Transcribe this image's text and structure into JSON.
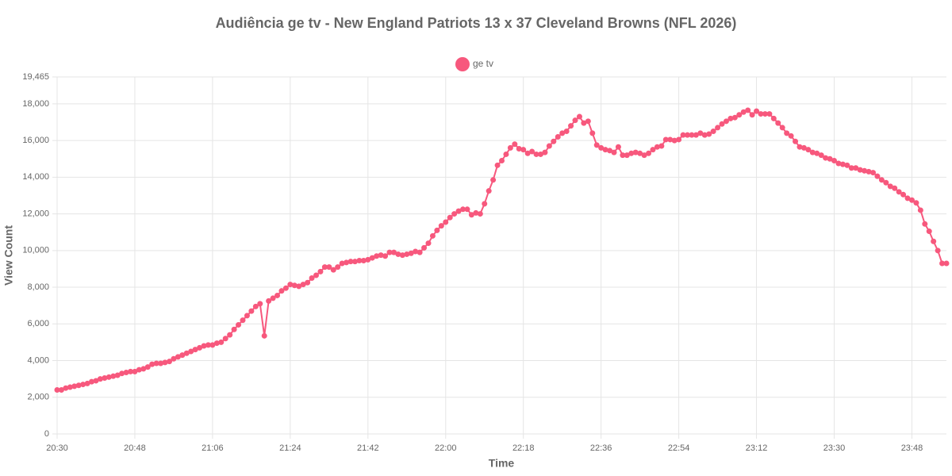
{
  "chart_data": {
    "type": "line",
    "title": "Audiência ge tv - New England Patriots 13 x 37 Cleveland Browns (NFL 2026)",
    "x_label": "Time",
    "y_label": "View Count",
    "x": [
      "20:30",
      "20:31",
      "20:32",
      "20:33",
      "20:34",
      "20:35",
      "20:36",
      "20:37",
      "20:38",
      "20:39",
      "20:40",
      "20:41",
      "20:42",
      "20:43",
      "20:44",
      "20:45",
      "20:46",
      "20:47",
      "20:48",
      "20:49",
      "20:50",
      "20:51",
      "20:52",
      "20:53",
      "20:54",
      "20:55",
      "20:56",
      "20:57",
      "20:58",
      "20:59",
      "21:00",
      "21:01",
      "21:02",
      "21:03",
      "21:04",
      "21:05",
      "21:06",
      "21:07",
      "21:08",
      "21:09",
      "21:10",
      "21:11",
      "21:12",
      "21:13",
      "21:14",
      "21:15",
      "21:16",
      "21:17",
      "21:18",
      "21:19",
      "21:20",
      "21:21",
      "21:22",
      "21:23",
      "21:24",
      "21:25",
      "21:26",
      "21:27",
      "21:28",
      "21:29",
      "21:30",
      "21:31",
      "21:32",
      "21:33",
      "21:34",
      "21:35",
      "21:36",
      "21:37",
      "21:38",
      "21:39",
      "21:40",
      "21:41",
      "21:42",
      "21:43",
      "21:44",
      "21:45",
      "21:46",
      "21:47",
      "21:48",
      "21:49",
      "21:50",
      "21:51",
      "21:52",
      "21:53",
      "21:54",
      "21:55",
      "21:56",
      "21:57",
      "21:58",
      "21:59",
      "22:00",
      "22:01",
      "22:02",
      "22:03",
      "22:04",
      "22:05",
      "22:06",
      "22:07",
      "22:08",
      "22:09",
      "22:10",
      "22:11",
      "22:12",
      "22:13",
      "22:14",
      "22:15",
      "22:16",
      "22:17",
      "22:18",
      "22:19",
      "22:20",
      "22:21",
      "22:22",
      "22:23",
      "22:24",
      "22:25",
      "22:26",
      "22:27",
      "22:28",
      "22:29",
      "22:30",
      "22:31",
      "22:32",
      "22:33",
      "22:34",
      "22:35",
      "22:36",
      "22:37",
      "22:38",
      "22:39",
      "22:40",
      "22:41",
      "22:42",
      "22:43",
      "22:44",
      "22:45",
      "22:46",
      "22:47",
      "22:48",
      "22:49",
      "22:50",
      "22:51",
      "22:52",
      "22:53",
      "22:54",
      "22:55",
      "22:56",
      "22:57",
      "22:58",
      "22:59",
      "23:00",
      "23:01",
      "23:02",
      "23:03",
      "23:04",
      "23:05",
      "23:06",
      "23:07",
      "23:08",
      "23:09",
      "23:10",
      "23:11",
      "23:12",
      "23:13",
      "23:14",
      "23:15",
      "23:16",
      "23:17",
      "23:18",
      "23:19",
      "23:20",
      "23:21",
      "23:22",
      "23:23",
      "23:24",
      "23:25",
      "23:26",
      "23:27",
      "23:28",
      "23:29",
      "23:30",
      "23:31",
      "23:32",
      "23:33",
      "23:34",
      "23:35",
      "23:36",
      "23:37",
      "23:38",
      "23:39",
      "23:40",
      "23:41",
      "23:42",
      "23:43",
      "23:44",
      "23:45",
      "23:46",
      "23:47",
      "23:48",
      "23:49",
      "23:50",
      "23:51",
      "23:52",
      "23:53",
      "23:54",
      "23:55",
      "23:56"
    ],
    "series": [
      {
        "name": "ge tv",
        "color": "#f7587d",
        "values": [
          2400,
          2400,
          2500,
          2550,
          2600,
          2650,
          2700,
          2750,
          2850,
          2900,
          3000,
          3050,
          3100,
          3150,
          3200,
          3300,
          3350,
          3400,
          3400,
          3500,
          3550,
          3650,
          3800,
          3850,
          3850,
          3900,
          3950,
          4100,
          4200,
          4300,
          4400,
          4500,
          4600,
          4700,
          4800,
          4850,
          4850,
          4950,
          5000,
          5200,
          5400,
          5700,
          5950,
          6200,
          6450,
          6700,
          6950,
          7100,
          5350,
          7250,
          7400,
          7550,
          7800,
          7950,
          8150,
          8100,
          8050,
          8150,
          8250,
          8500,
          8650,
          8850,
          9100,
          9100,
          8950,
          9100,
          9300,
          9350,
          9400,
          9400,
          9450,
          9450,
          9500,
          9600,
          9700,
          9750,
          9700,
          9900,
          9900,
          9800,
          9750,
          9800,
          9850,
          9950,
          9900,
          10150,
          10400,
          10800,
          11100,
          11350,
          11550,
          11800,
          12000,
          12150,
          12250,
          12250,
          11950,
          12050,
          12000,
          12550,
          13250,
          13850,
          14650,
          14900,
          15250,
          15600,
          15800,
          15550,
          15500,
          15300,
          15400,
          15250,
          15250,
          15350,
          15700,
          15950,
          16200,
          16400,
          16500,
          16800,
          17100,
          17300,
          16950,
          17050,
          16400,
          15750,
          15600,
          15500,
          15450,
          15350,
          15650,
          15200,
          15200,
          15300,
          15350,
          15300,
          15200,
          15300,
          15500,
          15650,
          15700,
          16050,
          16050,
          16000,
          16050,
          16300,
          16300,
          16300,
          16300,
          16400,
          16300,
          16350,
          16500,
          16700,
          16900,
          17050,
          17200,
          17250,
          17400,
          17550,
          17650,
          17400,
          17600,
          17450,
          17450,
          17450,
          17200,
          16950,
          16700,
          16400,
          16250,
          15950,
          15650,
          15600,
          15500,
          15350,
          15300,
          15200,
          15050,
          15000,
          14900,
          14750,
          14700,
          14650,
          14500,
          14500,
          14400,
          14350,
          14300,
          14250,
          14050,
          13850,
          13700,
          13500,
          13400,
          13200,
          13050,
          12850,
          12750,
          12600,
          12200,
          11450,
          11050,
          10500,
          10000,
          9300,
          9300
        ]
      }
    ],
    "xticks": [
      "20:30",
      "20:48",
      "21:06",
      "21:24",
      "21:42",
      "22:00",
      "22:18",
      "22:36",
      "22:54",
      "23:12",
      "23:30",
      "23:48"
    ],
    "ylim": [
      0,
      19465
    ],
    "yticks": [
      0,
      {
        "value": 2000,
        "label": "2,000"
      },
      {
        "value": 4000,
        "label": "4,000"
      },
      {
        "value": 6000,
        "label": "6,000"
      },
      {
        "value": 8000,
        "label": "8,000"
      },
      {
        "value": 10000,
        "label": "10,000"
      },
      {
        "value": 12000,
        "label": "12,000"
      },
      {
        "value": 14000,
        "label": "14,000"
      },
      {
        "value": 16000,
        "label": "16,000"
      },
      {
        "value": 18000,
        "label": "18,000"
      },
      {
        "value": 19465,
        "label": "19,465"
      }
    ],
    "grid": true,
    "legend": "top"
  }
}
